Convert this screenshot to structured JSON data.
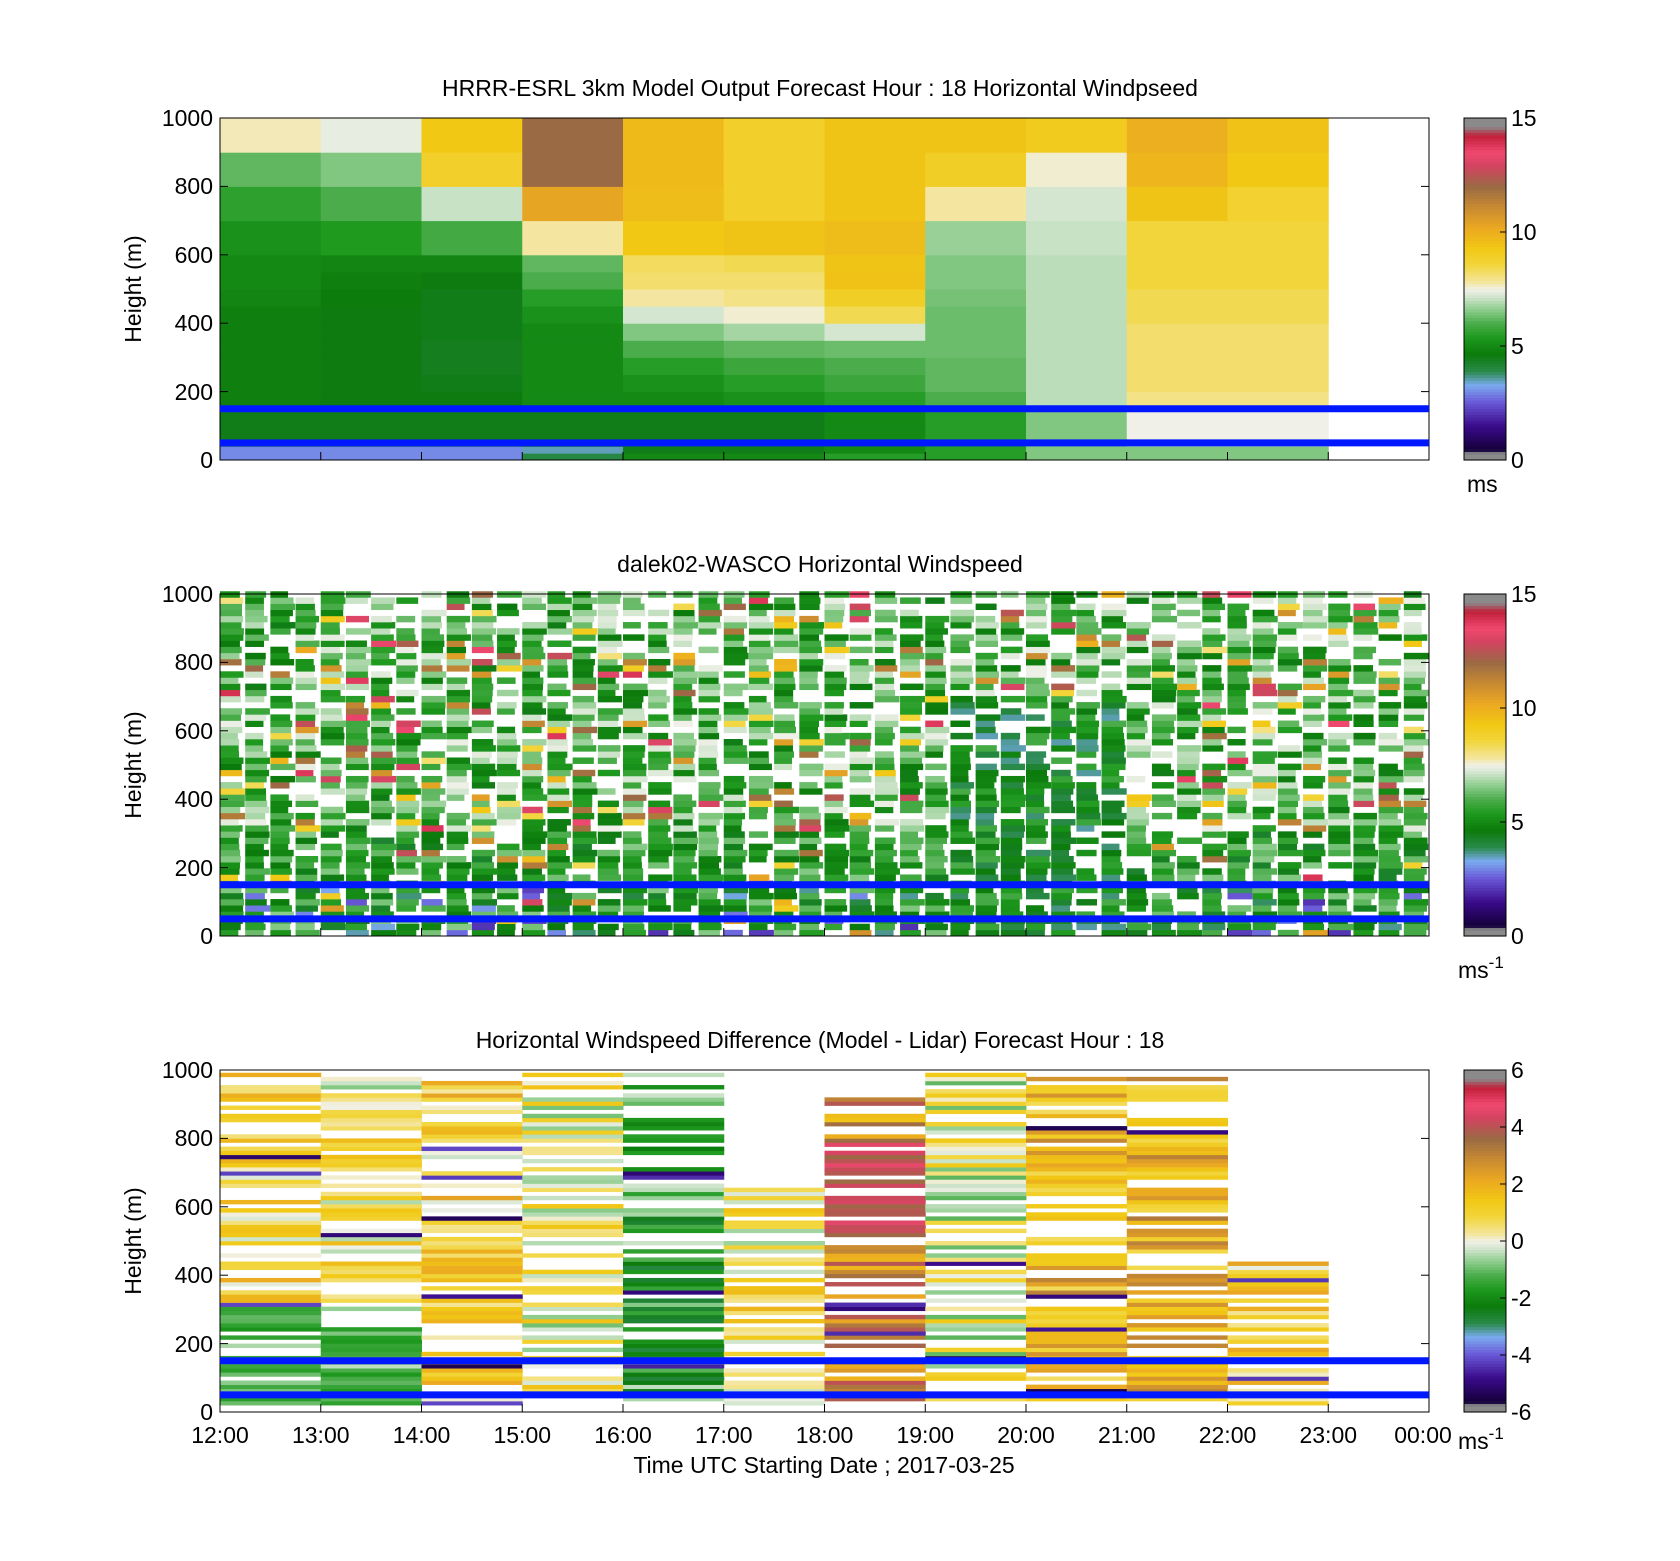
{
  "figure": {
    "xaxis_title": "Time UTC  Starting Date ; 2017-03-25",
    "ylabel": "Height (m)"
  },
  "chart_data": [
    {
      "type": "heatmap",
      "title": "HRRR-ESRL 3km Model Output   Forecast Hour : 18 Horizontal Windpseed",
      "ylabel": "Height (m)",
      "xlim": [
        "12:00",
        "00:00"
      ],
      "ylim": [
        0,
        1000
      ],
      "yticks": [
        "0",
        "200",
        "400",
        "600",
        "800",
        "1000"
      ],
      "colorbar": {
        "range": [
          0,
          15
        ],
        "ticks": [
          "0",
          "5",
          "10",
          "15"
        ],
        "unit": "ms",
        "unit_sup": ""
      },
      "reference_lines_m": [
        50,
        150
      ],
      "column_hours": [
        "12:00",
        "13:00",
        "14:00",
        "15:00",
        "16:00",
        "17:00",
        "18:00",
        "19:00",
        "20:00",
        "21:00",
        "22:00"
      ],
      "row_edges_m": [
        0,
        20,
        40,
        60,
        100,
        150,
        200,
        250,
        300,
        350,
        400,
        450,
        500,
        550,
        600,
        700,
        800,
        900,
        1000
      ],
      "values": [
        [
          3,
          3,
          3,
          4,
          5,
          5,
          5.5,
          5.5,
          6.5,
          6.5,
          6.5
        ],
        [
          3,
          3,
          3,
          3.5,
          4.5,
          4.5,
          5,
          5.5,
          6.5,
          6.5,
          6.5
        ],
        [
          4,
          4,
          4,
          4.5,
          4.5,
          4.5,
          5,
          5.5,
          6.5,
          7.0,
          7.0
        ],
        [
          4.5,
          4.5,
          4.5,
          4.5,
          4.5,
          4.5,
          5,
          5.5,
          6.5,
          7.5,
          7.5
        ],
        [
          4.5,
          4.5,
          4.5,
          4.5,
          4.5,
          4.5,
          5,
          5.5,
          6.5,
          7.5,
          7.5
        ],
        [
          4.8,
          4.6,
          4.6,
          5,
          5,
          5.2,
          5.5,
          6,
          7,
          8,
          8
        ],
        [
          4.8,
          4.6,
          4.5,
          5,
          5.2,
          5.5,
          5.8,
          6.2,
          7,
          8.2,
          8.2
        ],
        [
          4.8,
          4.6,
          4.4,
          5,
          5.5,
          5.8,
          6,
          6.2,
          7,
          8.2,
          8.2
        ],
        [
          4.8,
          4.6,
          4.4,
          5,
          6,
          6.2,
          6.3,
          6.3,
          7,
          8.2,
          8.2
        ],
        [
          4.8,
          4.6,
          4.5,
          5,
          6.5,
          6.8,
          7.2,
          6.3,
          7,
          8.2,
          8.2
        ],
        [
          4.8,
          4.6,
          4.5,
          5.2,
          7.2,
          7.6,
          8.4,
          6.3,
          7,
          8.4,
          8.4
        ],
        [
          4.9,
          4.7,
          4.5,
          5.5,
          7.8,
          8.0,
          9.0,
          6.4,
          7,
          8.4,
          8.4
        ],
        [
          5.0,
          4.8,
          4.6,
          6.0,
          8.2,
          8.2,
          9.5,
          6.5,
          7,
          8.6,
          8.6
        ],
        [
          5.0,
          4.9,
          4.9,
          6.2,
          8.3,
          8.4,
          9.4,
          6.5,
          7,
          8.6,
          8.6
        ],
        [
          5.2,
          5.4,
          5.9,
          7.8,
          9.3,
          9.4,
          9.6,
          6.7,
          7.1,
          8.6,
          8.6
        ],
        [
          5.6,
          6.0,
          7.1,
          10.3,
          9.6,
          8.9,
          9.4,
          7.8,
          7.2,
          9.4,
          8.8
        ],
        [
          6.2,
          6.5,
          8.9,
          12.0,
          9.7,
          8.9,
          9.4,
          9.0,
          7.6,
          9.8,
          9.3
        ],
        [
          7.7,
          7.4,
          9.3,
          12.0,
          9.7,
          8.9,
          9.4,
          9.4,
          9.1,
          10.0,
          9.5
        ]
      ]
    },
    {
      "type": "heatmap",
      "title": "dalek02-WASCO  Horizontal Windspeed",
      "ylabel": "Height (m)",
      "xlim": [
        "12:00",
        "00:00"
      ],
      "ylim": [
        0,
        1000
      ],
      "yticks": [
        "0",
        "200",
        "400",
        "600",
        "800",
        "1000"
      ],
      "colorbar": {
        "range": [
          0,
          15
        ],
        "ticks": [
          "0",
          "5",
          "10",
          "15"
        ],
        "unit": "ms",
        "unit_sup": "-1"
      },
      "reference_lines_m": [
        50,
        150
      ]
    },
    {
      "type": "heatmap",
      "title": "Horizontal Windspeed Difference (Model - Lidar) Forecast Hour : 18",
      "ylabel": "Height (m)",
      "xlabel": "Time UTC  Starting Date ; 2017-03-25",
      "xlim": [
        "12:00",
        "00:00"
      ],
      "xticks": [
        "12:00",
        "13:00",
        "14:00",
        "15:00",
        "16:00",
        "17:00",
        "18:00",
        "19:00",
        "20:00",
        "21:00",
        "22:00",
        "23:00",
        "00:00"
      ],
      "ylim": [
        0,
        1000
      ],
      "yticks": [
        "0",
        "200",
        "400",
        "600",
        "800",
        "1000"
      ],
      "colorbar": {
        "range": [
          -6,
          6
        ],
        "ticks": [
          "-6",
          "-4",
          "-2",
          "0",
          "2",
          "4",
          "6"
        ],
        "unit": "ms",
        "unit_sup": "-1"
      },
      "reference_lines_m": [
        50,
        150
      ]
    }
  ]
}
